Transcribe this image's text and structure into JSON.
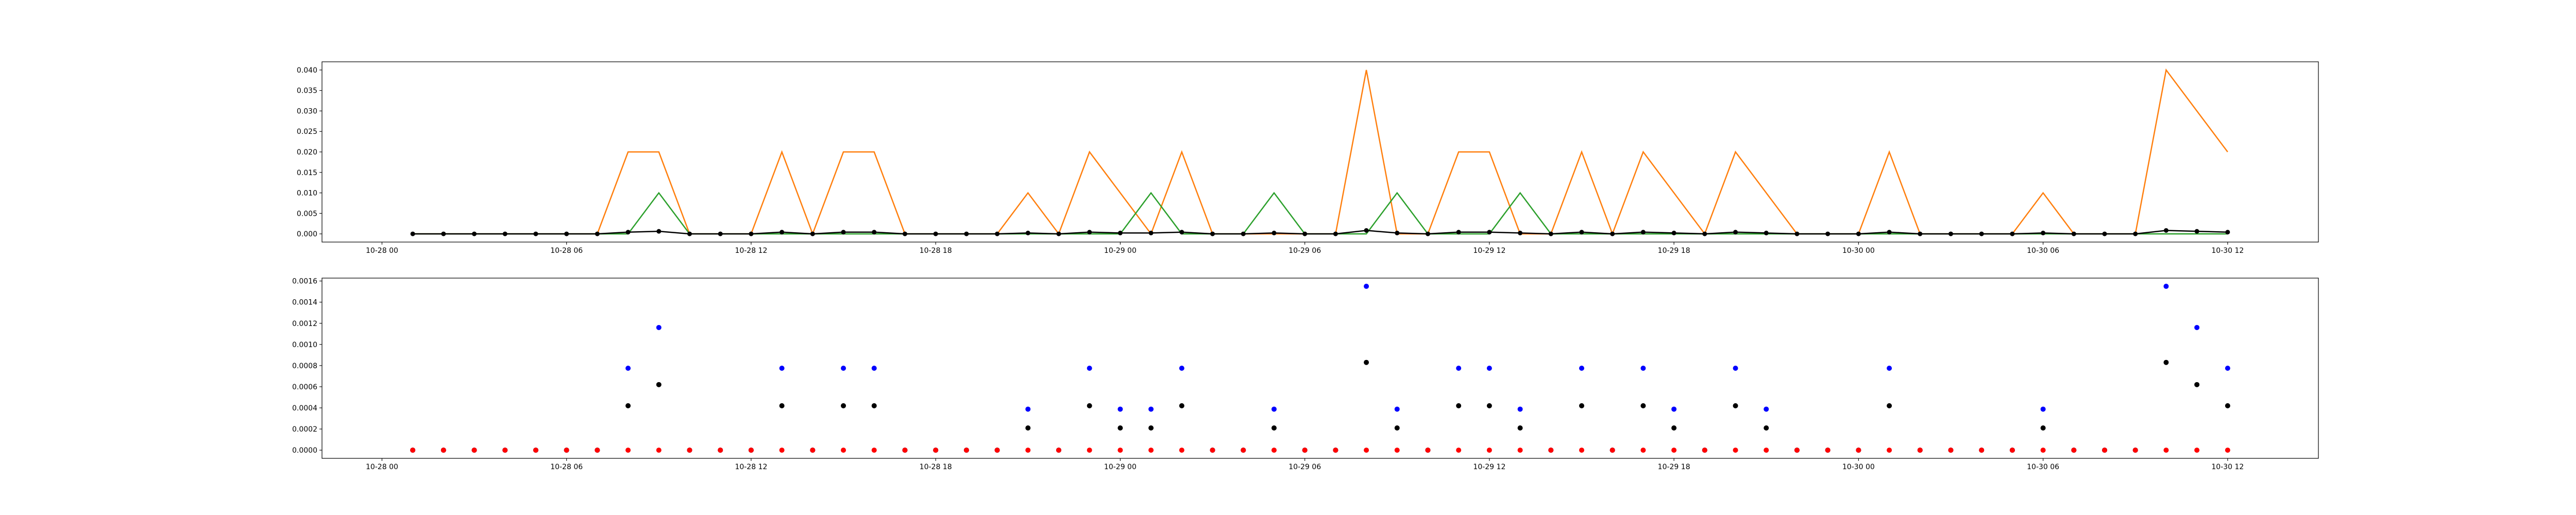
{
  "chart_data": [
    {
      "type": "line",
      "x": [
        "10-28 01",
        "10-28 02",
        "10-28 03",
        "10-28 04",
        "10-28 05",
        "10-28 06",
        "10-28 07",
        "10-28 08",
        "10-28 09",
        "10-28 10",
        "10-28 11",
        "10-28 12",
        "10-28 13",
        "10-28 14",
        "10-28 15",
        "10-28 16",
        "10-28 17",
        "10-28 18",
        "10-28 19",
        "10-28 20",
        "10-28 21",
        "10-28 22",
        "10-28 23",
        "10-29 00",
        "10-29 01",
        "10-29 02",
        "10-29 03",
        "10-29 04",
        "10-29 05",
        "10-29 06",
        "10-29 07",
        "10-29 08",
        "10-29 09",
        "10-29 10",
        "10-29 11",
        "10-29 12",
        "10-29 13",
        "10-29 14",
        "10-29 15",
        "10-29 16",
        "10-29 17",
        "10-29 18",
        "10-29 19",
        "10-29 20",
        "10-29 21",
        "10-29 22",
        "10-29 23",
        "10-30 00",
        "10-30 01",
        "10-30 02",
        "10-30 03",
        "10-30 04",
        "10-30 05",
        "10-30 06",
        "10-30 07",
        "10-30 08",
        "10-30 09",
        "10-30 10",
        "10-30 11",
        "10-30 12"
      ],
      "series": [
        {
          "color": "#ff7f0e",
          "values": [
            0,
            0,
            0,
            0,
            0,
            0,
            0,
            0.02,
            0.02,
            0,
            0,
            0,
            0.02,
            0,
            0.02,
            0.02,
            0,
            0,
            0,
            0,
            0.01,
            0,
            0.02,
            0.01,
            0,
            0.02,
            0,
            0,
            0,
            0,
            0,
            0.04,
            0,
            0,
            0.02,
            0.02,
            0,
            0,
            0.02,
            0,
            0.02,
            0.01,
            0,
            0.02,
            0.01,
            0,
            0,
            0,
            0.02,
            0,
            0,
            0,
            0,
            0.01,
            0,
            0,
            0,
            0.04,
            0.03,
            0.02
          ]
        },
        {
          "color": "#2ca02c",
          "values": [
            0,
            0,
            0,
            0,
            0,
            0,
            0,
            0,
            0.01,
            0,
            0,
            0,
            0,
            0,
            0,
            0,
            0,
            0,
            0,
            0,
            0,
            0,
            0,
            0,
            0.01,
            0,
            0,
            0,
            0.01,
            0,
            0,
            0,
            0.01,
            0,
            0,
            0,
            0.01,
            0,
            0,
            0,
            0,
            0,
            0,
            0,
            0,
            0,
            0,
            0,
            0,
            0,
            0,
            0,
            0,
            0,
            0,
            0,
            0,
            0,
            0,
            0
          ]
        },
        {
          "color": "#000000",
          "markers": true,
          "values": [
            0,
            0,
            0,
            0,
            0,
            0,
            0,
            0.00042,
            0.00062,
            0,
            0,
            0,
            0.00042,
            0,
            0.00042,
            0.00042,
            0,
            0,
            0,
            0,
            0.00021,
            0,
            0.00042,
            0.00021,
            0.00021,
            0.00042,
            0,
            0,
            0.00021,
            0,
            0,
            0.00083,
            0.00021,
            0,
            0.00042,
            0.00042,
            0.00021,
            0,
            0.00042,
            0,
            0.00042,
            0.00021,
            0,
            0.00042,
            0.00021,
            0,
            0,
            0,
            0.00042,
            0,
            0,
            0,
            0,
            0.00021,
            0,
            0,
            0,
            0.00083,
            0.00062,
            0.00042
          ]
        }
      ],
      "xlim": [
        "10-27 22:03",
        "10-30 14:57"
      ],
      "xticks": [
        "10-28 00",
        "10-28 06",
        "10-28 12",
        "10-28 18",
        "10-29 00",
        "10-29 06",
        "10-29 12",
        "10-29 18",
        "10-30 00",
        "10-30 06",
        "10-30 12"
      ],
      "ylim": [
        -0.002,
        0.042
      ],
      "yticks": [
        {
          "value": 0,
          "label": "0.000"
        },
        {
          "value": 0.005,
          "label": "0.005"
        },
        {
          "value": 0.01,
          "label": "0.010"
        },
        {
          "value": 0.015,
          "label": "0.015"
        },
        {
          "value": 0.02,
          "label": "0.020"
        },
        {
          "value": 0.025,
          "label": "0.025"
        },
        {
          "value": 0.03,
          "label": "0.030"
        },
        {
          "value": 0.035,
          "label": "0.035"
        },
        {
          "value": 0.04,
          "label": "0.040"
        }
      ]
    },
    {
      "type": "scatter",
      "x": [
        "10-28 01",
        "10-28 02",
        "10-28 03",
        "10-28 04",
        "10-28 05",
        "10-28 06",
        "10-28 07",
        "10-28 08",
        "10-28 09",
        "10-28 10",
        "10-28 11",
        "10-28 12",
        "10-28 13",
        "10-28 14",
        "10-28 15",
        "10-28 16",
        "10-28 17",
        "10-28 18",
        "10-28 19",
        "10-28 20",
        "10-28 21",
        "10-28 22",
        "10-28 23",
        "10-29 00",
        "10-29 01",
        "10-29 02",
        "10-29 03",
        "10-29 04",
        "10-29 05",
        "10-29 06",
        "10-29 07",
        "10-29 08",
        "10-29 09",
        "10-29 10",
        "10-29 11",
        "10-29 12",
        "10-29 13",
        "10-29 14",
        "10-29 15",
        "10-29 16",
        "10-29 17",
        "10-29 18",
        "10-29 19",
        "10-29 20",
        "10-29 21",
        "10-29 22",
        "10-29 23",
        "10-30 00",
        "10-30 01",
        "10-30 02",
        "10-30 03",
        "10-30 04",
        "10-30 05",
        "10-30 06",
        "10-30 07",
        "10-30 08",
        "10-30 09",
        "10-30 10",
        "10-30 11",
        "10-30 12"
      ],
      "series": [
        {
          "color": "#0000ff",
          "values": [
            0,
            0,
            0,
            0,
            0,
            0,
            0,
            0.000775,
            0.00116,
            0,
            0,
            0,
            0.000775,
            0,
            0.000775,
            0.000775,
            0,
            0,
            0,
            0,
            0.000388,
            0,
            0.000775,
            0.000388,
            0.000388,
            0.000775,
            0,
            0,
            0.000388,
            0,
            0,
            0.00155,
            0.000388,
            0,
            0.000775,
            0.000775,
            0.000388,
            0,
            0.000775,
            0,
            0.000775,
            0.000388,
            0,
            0.000775,
            0.000388,
            0,
            0,
            0,
            0.000775,
            0,
            0,
            0,
            0,
            0.000388,
            0,
            0,
            0,
            0.00155,
            0.00116,
            0.000775
          ]
        },
        {
          "color": "#000000",
          "values": [
            0,
            0,
            0,
            0,
            0,
            0,
            0,
            0.00042,
            0.00062,
            0,
            0,
            0,
            0.00042,
            0,
            0.00042,
            0.00042,
            0,
            0,
            0,
            0,
            0.00021,
            0,
            0.00042,
            0.00021,
            0.00021,
            0.00042,
            0,
            0,
            0.00021,
            0,
            0,
            0.00083,
            0.00021,
            0,
            0.00042,
            0.00042,
            0.00021,
            0,
            0.00042,
            0,
            0.00042,
            0.00021,
            0,
            0.00042,
            0.00021,
            0,
            0,
            0,
            0.00042,
            0,
            0,
            0,
            0,
            0.00021,
            0,
            0,
            0,
            0.00083,
            0.00062,
            0.00042
          ]
        },
        {
          "color": "#ff0000",
          "values": [
            0,
            0,
            0,
            0,
            0,
            0,
            0,
            0,
            0,
            0,
            0,
            0,
            0,
            0,
            0,
            0,
            0,
            0,
            0,
            0,
            0,
            0,
            0,
            0,
            0,
            0,
            0,
            0,
            0,
            0,
            0,
            0,
            0,
            0,
            0,
            0,
            0,
            0,
            0,
            0,
            0,
            0,
            0,
            0,
            0,
            0,
            0,
            0,
            0,
            0,
            0,
            0,
            0,
            0,
            0,
            0,
            0,
            0,
            0,
            0
          ]
        }
      ],
      "xlim": [
        "10-27 22:03",
        "10-30 14:57"
      ],
      "xticks": [
        "10-28 00",
        "10-28 06",
        "10-28 12",
        "10-28 18",
        "10-29 00",
        "10-29 06",
        "10-29 12",
        "10-29 18",
        "10-30 00",
        "10-30 06",
        "10-30 12"
      ],
      "ylim": [
        -7.75e-05,
        0.0016275
      ],
      "yticks": [
        {
          "value": 0,
          "label": "0.0000"
        },
        {
          "value": 0.0002,
          "label": "0.0002"
        },
        {
          "value": 0.0004,
          "label": "0.0004"
        },
        {
          "value": 0.0006,
          "label": "0.0006"
        },
        {
          "value": 0.0008,
          "label": "0.0008"
        },
        {
          "value": 0.001,
          "label": "0.0010"
        },
        {
          "value": 0.0012,
          "label": "0.0012"
        },
        {
          "value": 0.0014,
          "label": "0.0014"
        },
        {
          "value": 0.0016,
          "label": "0.0016"
        }
      ]
    }
  ]
}
